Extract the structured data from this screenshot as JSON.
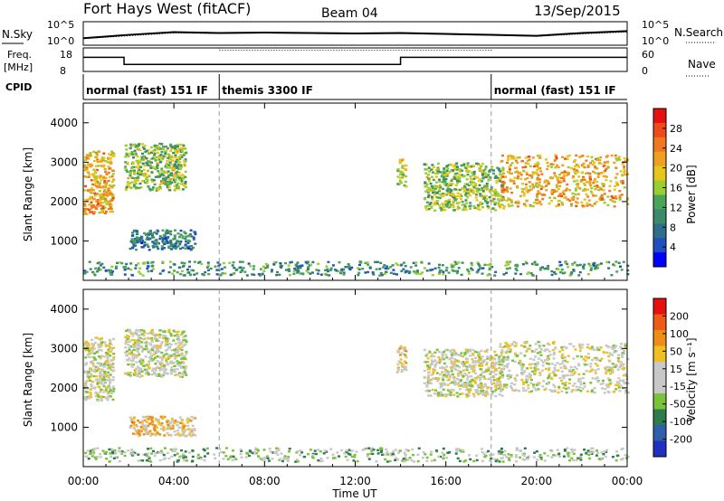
{
  "header": {
    "title": "Fort Hays West (fitACF)",
    "beam": "Beam 04",
    "date": "13/Sep/2015"
  },
  "noise_panel": {
    "left_label": "N.Sky",
    "right_label": "N.Search",
    "left_ticks": [
      "10^5",
      "10^0"
    ],
    "right_ticks": [
      "10^5",
      "10^0"
    ]
  },
  "freq_panel": {
    "left_label_1": "Freq.",
    "left_label_2": "[MHz]",
    "right_label": "Nave",
    "left_ticks": [
      "18",
      "8"
    ],
    "right_ticks": [
      "60",
      "0"
    ]
  },
  "cpid_panel": {
    "label": "CPID",
    "segments": [
      {
        "label": "normal (fast) 151 IF",
        "start_hour": 0,
        "end_hour": 6
      },
      {
        "label": "themis 3300 IF",
        "start_hour": 6,
        "end_hour": 18
      },
      {
        "label": "normal (fast) 151 IF",
        "start_hour": 18,
        "end_hour": 24
      }
    ]
  },
  "power_panel": {
    "ylabel": "Slant Range [km]",
    "yticks": [
      "4000",
      "3000",
      "2000",
      "1000"
    ],
    "colorbar_label": "Power [dB]",
    "colorbar_ticks": [
      "28",
      "24",
      "20",
      "16",
      "12",
      "8",
      "4"
    ],
    "colors": [
      "#0000ff",
      "#1f4fbf",
      "#2e6e8a",
      "#3c8a6a",
      "#4aa55a",
      "#9acd32",
      "#e6c619",
      "#f0a020",
      "#f07820",
      "#ee4a1a",
      "#e61010"
    ]
  },
  "velocity_panel": {
    "ylabel": "Slant Range [km]",
    "yticks": [
      "4000",
      "3000",
      "2000",
      "1000"
    ],
    "colorbar_label": "Velocity [m s⁻¹]",
    "colorbar_ticks": [
      "200",
      "100",
      "50",
      "15",
      "-15",
      "-50",
      "-100",
      "-200"
    ],
    "colors": [
      "#2030c0",
      "#2e5fa8",
      "#2f7a4e",
      "#7ac23a",
      "#c8c8c8",
      "#c8c8c8",
      "#f0c020",
      "#f08c18",
      "#ee5a18",
      "#e61010"
    ]
  },
  "x_axis": {
    "ticks": [
      "00:00",
      "04:00",
      "08:00",
      "12:00",
      "16:00",
      "20:00",
      "00:00"
    ],
    "label": "Time UT"
  },
  "chart_data": [
    {
      "type": "line",
      "name": "noise",
      "x": [
        0,
        2,
        4,
        6,
        8,
        10,
        12,
        14,
        16,
        18,
        20,
        22,
        24
      ],
      "series": [
        {
          "name": "N.Sky",
          "values": [
            1.5,
            2.2,
            2.8,
            2.6,
            2.7,
            2.6,
            2.5,
            2.6,
            2.4,
            2.2,
            2.0,
            2.6,
            3.0
          ]
        },
        {
          "name": "N.Search",
          "values": [
            1.4,
            2.0,
            2.6,
            2.5,
            2.6,
            2.5,
            2.4,
            2.5,
            2.3,
            2.1,
            1.9,
            2.4,
            2.8
          ]
        }
      ],
      "ylim": [
        0,
        5
      ]
    },
    {
      "type": "line",
      "name": "frequency",
      "series": [
        {
          "name": "Freq.",
          "x": [
            0,
            1.8,
            1.8,
            14,
            14,
            24
          ],
          "values": [
            14,
            14,
            11,
            11,
            14,
            14
          ]
        },
        {
          "name": "Nave",
          "x": [
            0,
            6,
            6,
            18,
            18,
            24
          ],
          "values": [
            18,
            18,
            17,
            17,
            18,
            18
          ]
        }
      ],
      "xlim": [
        0,
        24
      ],
      "ylim": [
        8,
        18
      ]
    },
    {
      "type": "heatmap",
      "name": "power",
      "xlabel": "Time UT",
      "ylabel": "Slant Range [km]",
      "xlim": [
        0,
        24
      ],
      "ylim": [
        0,
        4500
      ],
      "clim": [
        0,
        30
      ],
      "regions": [
        {
          "t0": 0.0,
          "t1": 1.3,
          "r0": 1700,
          "r1": 3300,
          "value": 20
        },
        {
          "t0": 1.8,
          "t1": 4.5,
          "r0": 2300,
          "r1": 3500,
          "value": 14
        },
        {
          "t0": 2.0,
          "t1": 4.9,
          "r0": 800,
          "r1": 1300,
          "value": 8
        },
        {
          "t0": 0.0,
          "t1": 24.0,
          "r0": 150,
          "r1": 500,
          "value": 10
        },
        {
          "t0": 13.8,
          "t1": 14.2,
          "r0": 2400,
          "r1": 3100,
          "value": 16
        },
        {
          "t0": 15.0,
          "t1": 18.5,
          "r0": 1800,
          "r1": 3000,
          "value": 14
        },
        {
          "t0": 18.3,
          "t1": 24.0,
          "r0": 1900,
          "r1": 3200,
          "value": 20
        }
      ]
    },
    {
      "type": "heatmap",
      "name": "velocity",
      "xlabel": "Time UT",
      "ylabel": "Slant Range [km]",
      "xlim": [
        0,
        24
      ],
      "ylim": [
        0,
        4500
      ],
      "clim": [
        -200,
        200
      ],
      "regions": [
        {
          "t0": 0.0,
          "t1": 1.3,
          "r0": 1700,
          "r1": 3300,
          "value": 0
        },
        {
          "t0": 1.8,
          "t1": 4.5,
          "r0": 2300,
          "r1": 3500,
          "value": -10
        },
        {
          "t0": 2.0,
          "t1": 4.9,
          "r0": 800,
          "r1": 1300,
          "value": 50
        },
        {
          "t0": 0.0,
          "t1": 24.0,
          "r0": 150,
          "r1": 500,
          "value": -40
        },
        {
          "t0": 13.8,
          "t1": 14.2,
          "r0": 2400,
          "r1": 3100,
          "value": 20
        },
        {
          "t0": 15.0,
          "t1": 18.5,
          "r0": 1800,
          "r1": 3000,
          "value": 0
        },
        {
          "t0": 18.3,
          "t1": 24.0,
          "r0": 1900,
          "r1": 3200,
          "value": 0
        }
      ]
    }
  ]
}
